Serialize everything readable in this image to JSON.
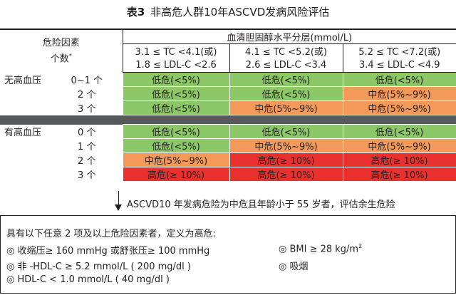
{
  "title": {
    "label": "表3",
    "text": "非高危人群10年ASCVD发病风险评估"
  },
  "header": {
    "factor_title": "危险因素",
    "factor_title2": "个数",
    "factor_mark": "*",
    "chol_title": "血清胆固醇水平分层(mmol/L)",
    "columns": [
      {
        "tc": "3.1 ≤ TC <4.1(或)",
        "ldl": "1.8 ≤ LDL-C <2.6"
      },
      {
        "tc": "4.1 ≤ TC <5.2(或)",
        "ldl": "2.6 ≤ LDL-C <3.4"
      },
      {
        "tc": "5.2 ≤ TC <7.2(或)",
        "ldl": "3.4 ≤ LDL-C <4.9"
      }
    ]
  },
  "groups": [
    {
      "name": "无高血压",
      "rows": [
        {
          "count": "0~1 个",
          "cells": [
            "低危(<5%)",
            "低危(<5%)",
            "低危(<5%)"
          ]
        },
        {
          "count": "2 个",
          "cells": [
            "低危(<5%)",
            "低危(<5%)",
            "中危(5%~9%)"
          ]
        },
        {
          "count": "3 个",
          "cells": [
            "低危(<5%)",
            "中危(5%~9%)",
            "中危(5%~9%)"
          ]
        }
      ]
    },
    {
      "name": "有高血压",
      "rows": [
        {
          "count": "0 个",
          "cells": [
            "低危(<5%)",
            "低危(<5%)",
            "低危(<5%)"
          ]
        },
        {
          "count": "1 个",
          "cells": [
            "低危(<5%)",
            "中危(5%~9%)",
            "中危(5%~9%)"
          ]
        },
        {
          "count": "2 个",
          "cells": [
            "中危(5%~9%)",
            "高危(≥ 10%)",
            "高危(≥ 10%)"
          ]
        },
        {
          "count": "3 个",
          "cells": [
            "高危(≥ 10%)",
            "高危(≥ 10%)",
            "高危(≥ 10%)"
          ]
        }
      ]
    }
  ],
  "arrow_text": "ASCVD10 年发病危险为中危且年龄小于 55 岁者，评估余生危险",
  "box": {
    "intro": "具有以下任意 2 项及以上危险因素者，定义为高危:",
    "items": [
      "◎ 收缩压≥ 160 mmHg 或舒张压≥ 100 mmHg",
      "◎ 非 -HDL-C ≥ 5.2 mmol/L ( 200 mg/dl )",
      "◎ HDL-C < 1.0 mmol/L ( 40 mg/dl )"
    ],
    "right_items": [
      "◎ BMI ≥ 28 kg/m",
      "◎ 吸烟"
    ],
    "bmi_sup": "2"
  },
  "colors": {
    "low": "#8dc868",
    "mid": "#f39a5b",
    "high": "#e8312f",
    "band": "#58595b"
  }
}
